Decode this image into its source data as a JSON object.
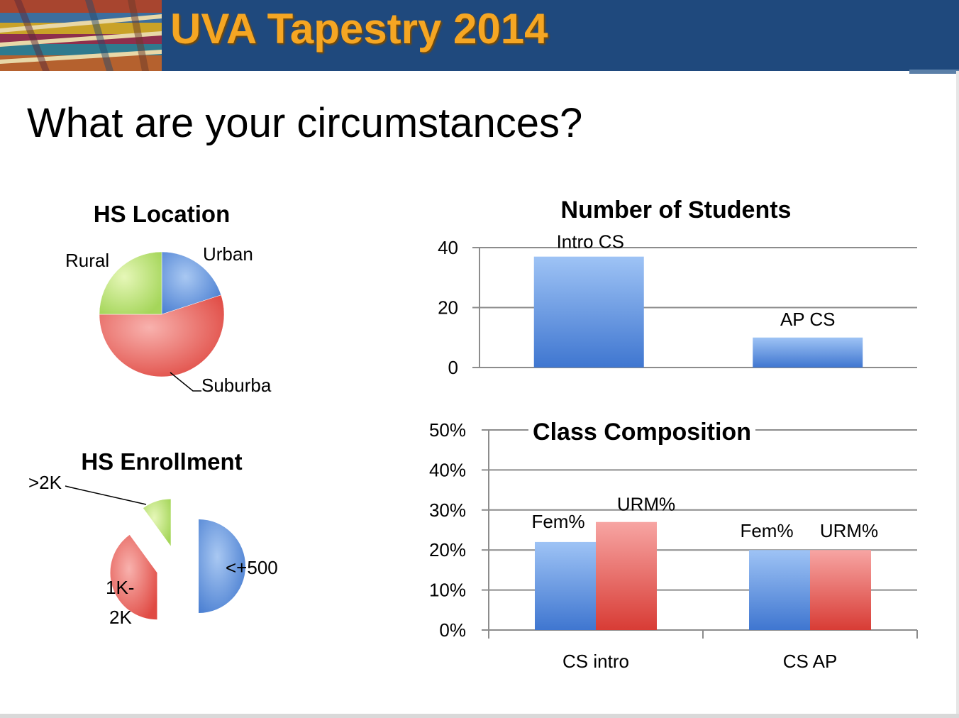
{
  "header": {
    "title": "UVA Tapestry 2014",
    "banner_image": "tapestry-weave-image"
  },
  "slide": {
    "title": "What are your circumstances?"
  },
  "colors": {
    "header_bg": "#1f497d",
    "title_orange": "#f5a623",
    "blue": "#4f81bd",
    "red": "#c0504d",
    "green": "#9bbb59"
  },
  "chart_data": [
    {
      "id": "hs-location",
      "type": "pie",
      "title": "HS Location",
      "labels": [
        "Urban",
        "Suburba",
        "Rural"
      ],
      "values": [
        20,
        55,
        25
      ]
    },
    {
      "id": "number-of-students",
      "type": "bar",
      "title": "Number of Students",
      "categories": [
        "Intro CS",
        "AP CS"
      ],
      "values": [
        37,
        10
      ],
      "ylim": [
        0,
        40
      ],
      "yticks": [
        0,
        20,
        40
      ],
      "tick_labels": [
        "0",
        "20",
        "40"
      ],
      "grid": true
    },
    {
      "id": "hs-enrollment",
      "type": "pie",
      "title": "HS Enrollment",
      "labels": [
        "<+500",
        "1K-2K",
        ">2K"
      ],
      "label_lines": [
        [
          "<+500"
        ],
        [
          "1K-",
          "2K"
        ],
        [
          ">2K"
        ]
      ],
      "values": [
        50,
        40,
        10
      ],
      "exploded": true
    },
    {
      "id": "class-composition",
      "type": "bar",
      "title": "Class Composition",
      "categories": [
        "CS intro",
        "CS AP"
      ],
      "series": [
        {
          "name": "Fem%",
          "values": [
            22,
            20
          ]
        },
        {
          "name": "URM%",
          "values": [
            27,
            20
          ]
        }
      ],
      "ylim": [
        0,
        50
      ],
      "yticks": [
        0,
        10,
        20,
        30,
        40,
        50
      ],
      "tick_labels": [
        "0%",
        "10%",
        "20%",
        "30%",
        "40%",
        "50%"
      ],
      "grid": true
    }
  ]
}
